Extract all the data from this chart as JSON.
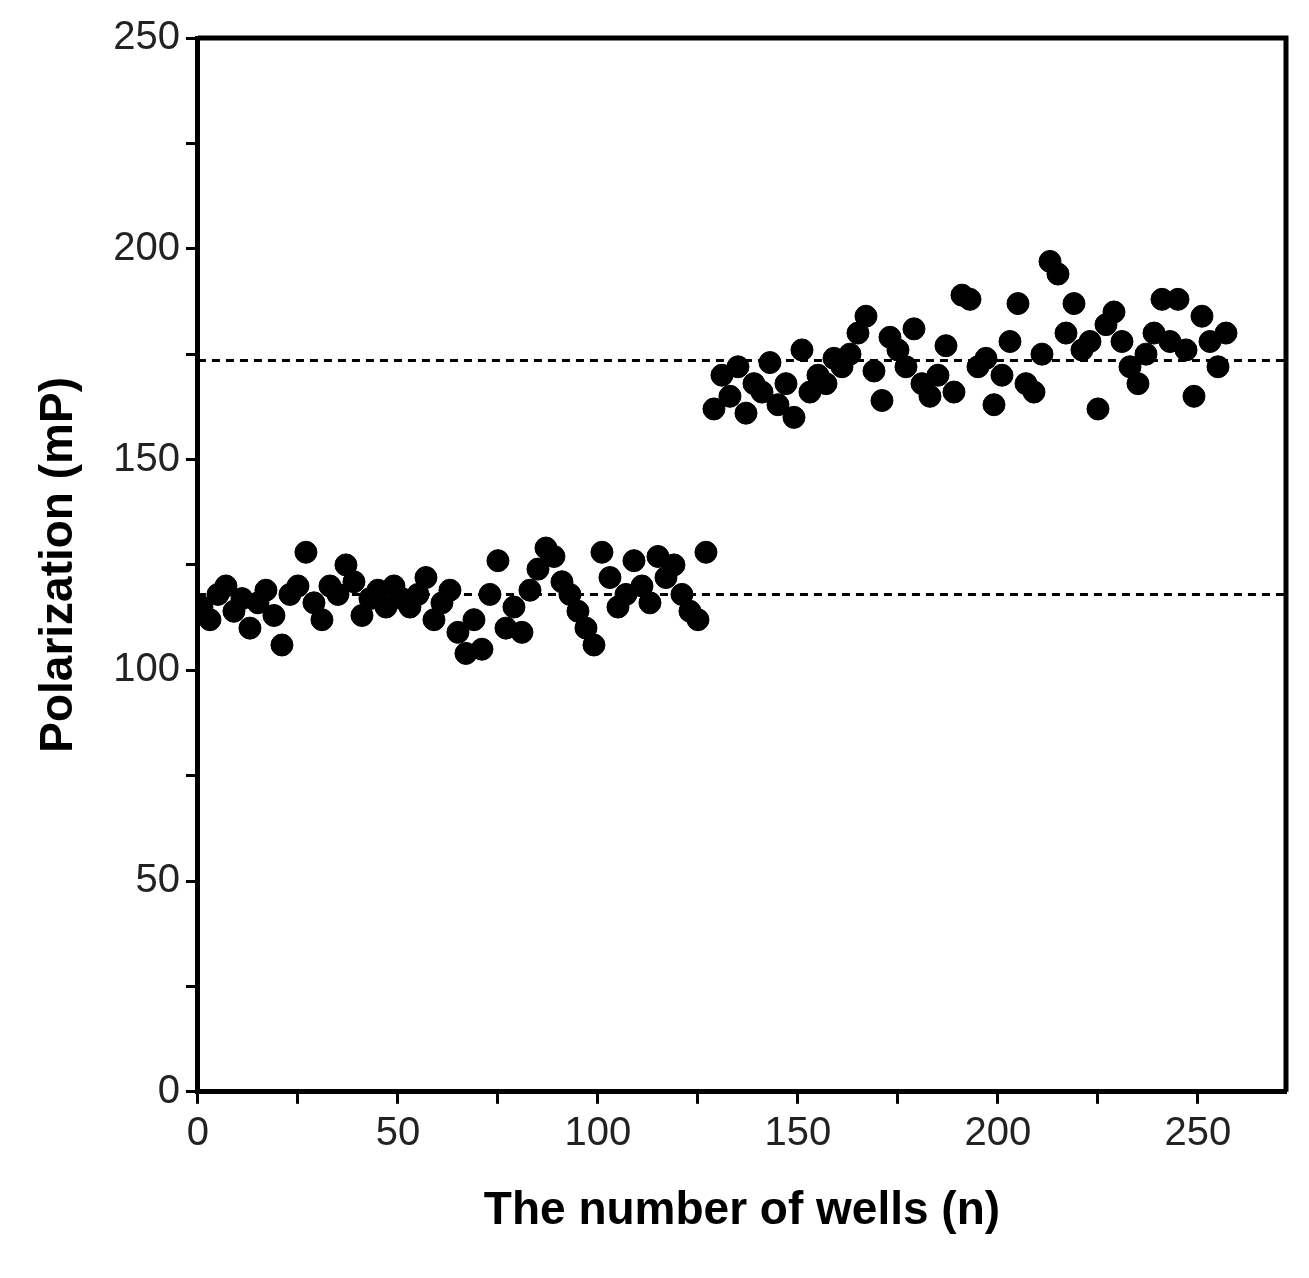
{
  "chart_data": {
    "type": "scatter",
    "xlabel": "The number of wells (n)",
    "ylabel": "Polarization (mP)",
    "xlim": [
      0,
      272
    ],
    "ylim": [
      0,
      250
    ],
    "xticks": [
      0,
      {
        "value": 25,
        "label": null
      },
      50,
      {
        "value": 75,
        "label": null
      },
      100,
      {
        "value": 125,
        "label": null
      },
      150,
      {
        "value": 175,
        "label": null
      },
      200,
      {
        "value": 225,
        "label": null
      },
      250
    ],
    "yticks": [
      0,
      {
        "value": 25,
        "label": null
      },
      50,
      {
        "value": 75,
        "label": null
      },
      100,
      {
        "value": 125,
        "label": null
      },
      150,
      {
        "value": 175,
        "label": null
      },
      200,
      {
        "value": 225,
        "label": null
      },
      250
    ],
    "marker": "circle",
    "legend": false,
    "ref_lines": [
      {
        "axis": "y",
        "value": 173.5,
        "color": "#000000",
        "line_style": "dashed"
      },
      {
        "axis": "y",
        "value": 118,
        "color": "#000000",
        "line_style": "dashed"
      }
    ],
    "series": [
      {
        "color": "#000000",
        "x": [
          1,
          3,
          5,
          7,
          9,
          11,
          13,
          15,
          17,
          19,
          21,
          23,
          25,
          27,
          29,
          31,
          33,
          35,
          37,
          39,
          41,
          43,
          45,
          47,
          49,
          51,
          53,
          55,
          57,
          59,
          61,
          63,
          65,
          67,
          69,
          71,
          73,
          75,
          77,
          79,
          81,
          83,
          85,
          87,
          89,
          91,
          93,
          95,
          97,
          99,
          101,
          103,
          105,
          107,
          109,
          111,
          113,
          115,
          117,
          119,
          121,
          123,
          125,
          127
        ],
        "values": [
          115,
          112,
          118,
          120,
          114,
          117,
          110,
          116,
          119,
          113,
          106,
          118,
          120,
          128,
          116,
          112,
          120,
          118,
          125,
          121,
          113,
          117,
          119,
          115,
          120,
          117,
          115,
          118,
          122,
          112,
          116,
          119,
          109,
          104,
          112,
          105,
          118,
          126,
          110,
          115,
          109,
          119,
          124,
          129,
          127,
          121,
          118,
          114,
          110,
          106,
          128,
          122,
          115,
          118,
          126,
          120,
          116,
          127,
          122,
          125,
          118,
          114,
          112,
          128
        ]
      },
      {
        "color": "#000000",
        "x": [
          129,
          131,
          133,
          135,
          137,
          139,
          141,
          143,
          145,
          147,
          149,
          151,
          153,
          155,
          157,
          159,
          161,
          163,
          165,
          167,
          169,
          171,
          173,
          175,
          177,
          179,
          181,
          183,
          185,
          187,
          189,
          191,
          193,
          195,
          197,
          199,
          201,
          203,
          205,
          207,
          209,
          211,
          213,
          215,
          217,
          219,
          221,
          223,
          225,
          227,
          229,
          231,
          233,
          235,
          237,
          239,
          241,
          243,
          245,
          247,
          249,
          251,
          253,
          255,
          257
        ],
        "values": [
          162,
          170,
          165,
          172,
          161,
          168,
          166,
          173,
          163,
          168,
          160,
          176,
          166,
          170,
          168,
          174,
          172,
          175,
          180,
          184,
          171,
          164,
          179,
          176,
          172,
          181,
          168,
          165,
          170,
          177,
          166,
          189,
          188,
          172,
          174,
          163,
          170,
          178,
          187,
          168,
          166,
          175,
          197,
          194,
          180,
          187,
          176,
          178,
          162,
          182,
          185,
          178,
          172,
          168,
          175,
          180,
          188,
          178,
          188,
          176,
          165,
          184,
          178,
          172,
          180
        ]
      }
    ]
  }
}
